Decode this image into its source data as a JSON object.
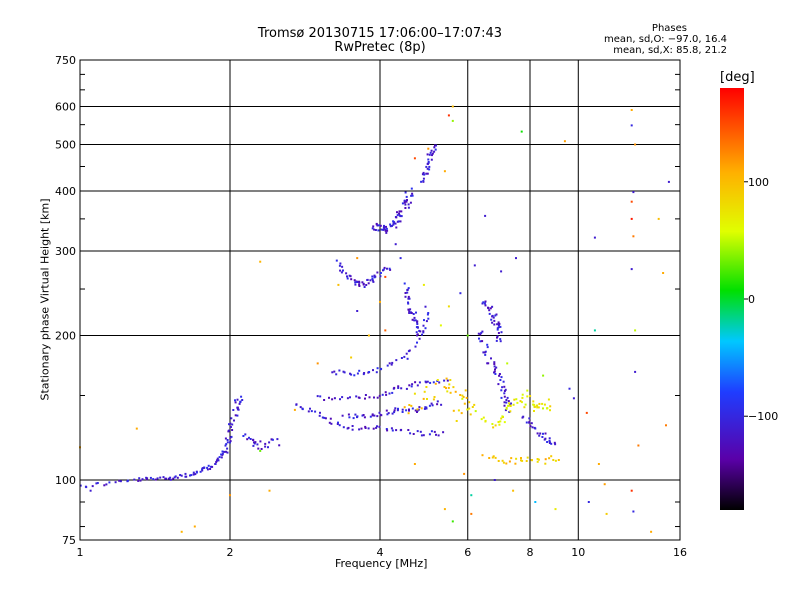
{
  "header": {
    "title_line1": "Tromsø 20130715 17:06:00–17:07:43",
    "title_line2": "RwPretec (8p)",
    "stats_heading": "Phases",
    "stats_o": "mean, sd,O: −97.0, 16.4",
    "stats_x": "mean, sd,X: 85.8, 21.2"
  },
  "colorbar": {
    "label": "[deg]",
    "min": -180,
    "max": 180,
    "ticks": [
      100,
      0,
      -100
    ],
    "tick_labels": [
      "100",
      "0",
      "−100"
    ]
  },
  "chart_data": {
    "type": "scatter",
    "title": "Tromsø 20130715 17:06:00–17:07:43",
    "subtitle": "RwPretec (8p)",
    "xlabel": "Frequency [MHz]",
    "ylabel": "Stationary phase Virtual Height [km]",
    "xscale": "log",
    "yscale": "log",
    "xlim": [
      1,
      16
    ],
    "ylim": [
      75,
      750
    ],
    "xticks": [
      1,
      2,
      4,
      6,
      8,
      10,
      16
    ],
    "xtick_labels": [
      "1",
      "2",
      "4",
      "6",
      "8",
      "10",
      "16"
    ],
    "yticks": [
      75,
      100,
      200,
      300,
      400,
      500,
      600,
      750
    ],
    "ytick_labels": [
      "75",
      "100",
      "200",
      "300",
      "400",
      "500",
      "600",
      "750"
    ],
    "grid": true,
    "color_encoding": "phase (deg)",
    "traces": [
      {
        "phase": -110,
        "n": 24,
        "spread": 0.7,
        "pts": [
          [
            1.0,
            97
          ],
          [
            1.3,
            100
          ],
          [
            1.5,
            101
          ],
          [
            1.7,
            103
          ],
          [
            1.85,
            107
          ],
          [
            1.95,
            115
          ]
        ]
      },
      {
        "phase": -110,
        "n": 12,
        "spread": 1.0,
        "pts": [
          [
            1.95,
            115
          ],
          [
            2.0,
            125
          ],
          [
            2.05,
            140
          ],
          [
            2.1,
            150
          ]
        ]
      },
      {
        "phase": -110,
        "n": 8,
        "spread": 1.5,
        "pts": [
          [
            2.15,
            122
          ],
          [
            2.3,
            118
          ],
          [
            2.5,
            120
          ]
        ]
      },
      {
        "phase": -110,
        "n": 20,
        "spread": 0.8,
        "pts": [
          [
            2.7,
            143
          ],
          [
            3.0,
            138
          ],
          [
            3.3,
            130
          ],
          [
            3.7,
            128
          ],
          [
            4.2,
            128
          ],
          [
            4.8,
            125
          ],
          [
            5.4,
            125
          ]
        ]
      },
      {
        "phase": -110,
        "n": 16,
        "spread": 0.8,
        "pts": [
          [
            3.2,
            168
          ],
          [
            3.6,
            167
          ],
          [
            4.0,
            170
          ],
          [
            4.5,
            180
          ],
          [
            4.9,
            205
          ],
          [
            5.0,
            230
          ]
        ]
      },
      {
        "phase": -110,
        "n": 16,
        "spread": 0.8,
        "pts": [
          [
            3.0,
            148
          ],
          [
            3.5,
            148
          ],
          [
            4.0,
            150
          ],
          [
            4.4,
            155
          ],
          [
            4.9,
            160
          ],
          [
            5.5,
            160
          ]
        ]
      },
      {
        "phase": -110,
        "n": 16,
        "spread": 0.8,
        "pts": [
          [
            3.4,
            136
          ],
          [
            3.9,
            136
          ],
          [
            4.3,
            140
          ],
          [
            4.8,
            140
          ],
          [
            5.3,
            145
          ]
        ]
      },
      {
        "phase": -110,
        "n": 14,
        "spread": 1.0,
        "pts": [
          [
            3.3,
            285
          ],
          [
            3.5,
            260
          ],
          [
            3.7,
            255
          ],
          [
            3.9,
            265
          ],
          [
            4.2,
            280
          ]
        ]
      },
      {
        "phase": -110,
        "n": 18,
        "spread": 1.4,
        "pts": [
          [
            3.9,
            340
          ],
          [
            4.1,
            330
          ],
          [
            4.3,
            345
          ],
          [
            4.5,
            370
          ],
          [
            4.6,
            400
          ]
        ]
      },
      {
        "phase": -110,
        "n": 12,
        "spread": 1.0,
        "pts": [
          [
            4.5,
            255
          ],
          [
            4.6,
            230
          ],
          [
            4.7,
            215
          ],
          [
            4.8,
            200
          ]
        ]
      },
      {
        "phase": -110,
        "n": 10,
        "spread": 1.0,
        "pts": [
          [
            4.9,
            420
          ],
          [
            5.0,
            460
          ],
          [
            5.2,
            500
          ]
        ]
      },
      {
        "phase": -110,
        "n": 14,
        "spread": 1.2,
        "pts": [
          [
            6.3,
            205
          ],
          [
            6.6,
            180
          ],
          [
            6.9,
            165
          ],
          [
            7.1,
            150
          ],
          [
            7.3,
            140
          ]
        ]
      },
      {
        "phase": -110,
        "n": 12,
        "spread": 1.2,
        "pts": [
          [
            6.5,
            235
          ],
          [
            6.8,
            215
          ],
          [
            7.0,
            195
          ]
        ]
      },
      {
        "phase": -110,
        "n": 10,
        "spread": 1.0,
        "pts": [
          [
            7.8,
            135
          ],
          [
            8.2,
            128
          ],
          [
            8.6,
            122
          ],
          [
            9.0,
            118
          ]
        ]
      },
      {
        "phase": 95,
        "n": 12,
        "spread": 1.2,
        "pts": [
          [
            6.5,
            112
          ],
          [
            7.0,
            110
          ],
          [
            7.5,
            109
          ],
          [
            8.0,
            110
          ],
          [
            8.6,
            110
          ],
          [
            9.2,
            112
          ]
        ]
      },
      {
        "phase": 70,
        "n": 22,
        "spread": 2.0,
        "pts": [
          [
            6.0,
            145
          ],
          [
            6.7,
            130
          ],
          [
            7.3,
            140
          ],
          [
            7.8,
            150
          ],
          [
            8.3,
            140
          ],
          [
            8.8,
            145
          ]
        ]
      },
      {
        "phase": 90,
        "n": 12,
        "spread": 2.2,
        "pts": [
          [
            4.5,
            140
          ],
          [
            5.0,
            150
          ],
          [
            5.5,
            160
          ],
          [
            5.9,
            150
          ],
          [
            5.7,
            135
          ]
        ]
      }
    ],
    "scatter_points": [
      {
        "x": 2.0,
        "y": 93,
        "phase": 120
      },
      {
        "x": 2.4,
        "y": 95,
        "phase": 110
      },
      {
        "x": 1.6,
        "y": 78,
        "phase": 105
      },
      {
        "x": 1.7,
        "y": 80,
        "phase": 110
      },
      {
        "x": 2.3,
        "y": 285,
        "phase": 105
      },
      {
        "x": 2.7,
        "y": 140,
        "phase": 110
      },
      {
        "x": 2.3,
        "y": 115,
        "phase": 30
      },
      {
        "x": 3.3,
        "y": 255,
        "phase": 100
      },
      {
        "x": 3.6,
        "y": 290,
        "phase": 120
      },
      {
        "x": 3.0,
        "y": 175,
        "phase": 120
      },
      {
        "x": 3.5,
        "y": 180,
        "phase": 90
      },
      {
        "x": 3.8,
        "y": 200,
        "phase": 100
      },
      {
        "x": 4.1,
        "y": 205,
        "phase": 140
      },
      {
        "x": 4.1,
        "y": 265,
        "phase": 150
      },
      {
        "x": 4.7,
        "y": 468,
        "phase": 150
      },
      {
        "x": 5.0,
        "y": 490,
        "phase": 120
      },
      {
        "x": 5.6,
        "y": 600,
        "phase": 100
      },
      {
        "x": 5.5,
        "y": 575,
        "phase": 160
      },
      {
        "x": 5.6,
        "y": 560,
        "phase": 40
      },
      {
        "x": 5.4,
        "y": 440,
        "phase": 110
      },
      {
        "x": 5.5,
        "y": 230,
        "phase": 80
      },
      {
        "x": 5.3,
        "y": 210,
        "phase": 60
      },
      {
        "x": 4.9,
        "y": 255,
        "phase": 70
      },
      {
        "x": 4.7,
        "y": 108,
        "phase": 110
      },
      {
        "x": 5.4,
        "y": 87,
        "phase": 105
      },
      {
        "x": 5.6,
        "y": 82,
        "phase": 20
      },
      {
        "x": 6.1,
        "y": 85,
        "phase": 130
      },
      {
        "x": 6.1,
        "y": 93,
        "phase": -20
      },
      {
        "x": 5.9,
        "y": 103,
        "phase": 120
      },
      {
        "x": 7.7,
        "y": 532,
        "phase": 10
      },
      {
        "x": 9.4,
        "y": 508,
        "phase": 115
      },
      {
        "x": 8.2,
        "y": 90,
        "phase": -40
      },
      {
        "x": 9.0,
        "y": 87,
        "phase": 70
      },
      {
        "x": 10.4,
        "y": 138,
        "phase": 150
      },
      {
        "x": 10.8,
        "y": 320,
        "phase": -110
      },
      {
        "x": 10.8,
        "y": 205,
        "phase": -20
      },
      {
        "x": 11.0,
        "y": 108,
        "phase": 110
      },
      {
        "x": 11.3,
        "y": 98,
        "phase": 115
      },
      {
        "x": 12.8,
        "y": 590,
        "phase": 110
      },
      {
        "x": 12.8,
        "y": 548,
        "phase": -100
      },
      {
        "x": 13.0,
        "y": 500,
        "phase": 120
      },
      {
        "x": 12.9,
        "y": 398,
        "phase": -110
      },
      {
        "x": 12.8,
        "y": 380,
        "phase": 150
      },
      {
        "x": 12.8,
        "y": 350,
        "phase": 170
      },
      {
        "x": 12.9,
        "y": 322,
        "phase": 130
      },
      {
        "x": 12.8,
        "y": 275,
        "phase": -110
      },
      {
        "x": 13.0,
        "y": 205,
        "phase": 50
      },
      {
        "x": 13.0,
        "y": 168,
        "phase": -110
      },
      {
        "x": 13.2,
        "y": 118,
        "phase": 130
      },
      {
        "x": 12.8,
        "y": 95,
        "phase": 160
      },
      {
        "x": 12.9,
        "y": 86,
        "phase": -100
      },
      {
        "x": 14.5,
        "y": 350,
        "phase": 100
      },
      {
        "x": 14.8,
        "y": 270,
        "phase": 110
      },
      {
        "x": 15.2,
        "y": 418,
        "phase": -110
      },
      {
        "x": 15.0,
        "y": 130,
        "phase": 130
      },
      {
        "x": 14.0,
        "y": 78,
        "phase": 110
      },
      {
        "x": 1.0,
        "y": 117,
        "phase": 110
      },
      {
        "x": 1.3,
        "y": 128,
        "phase": 110
      },
      {
        "x": 1.05,
        "y": 95,
        "phase": -110
      },
      {
        "x": 6.5,
        "y": 355,
        "phase": -110
      },
      {
        "x": 7.0,
        "y": 272,
        "phase": -110
      },
      {
        "x": 7.5,
        "y": 290,
        "phase": -110
      },
      {
        "x": 9.6,
        "y": 155,
        "phase": -100
      },
      {
        "x": 9.8,
        "y": 148,
        "phase": -110
      },
      {
        "x": 11.4,
        "y": 85,
        "phase": 90
      },
      {
        "x": 10.5,
        "y": 90,
        "phase": -100
      },
      {
        "x": 8.5,
        "y": 165,
        "phase": 40
      },
      {
        "x": 7.2,
        "y": 175,
        "phase": 50
      },
      {
        "x": 6.2,
        "y": 280,
        "phase": -110
      },
      {
        "x": 5.8,
        "y": 245,
        "phase": -100
      },
      {
        "x": 6.0,
        "y": 200,
        "phase": 30
      },
      {
        "x": 6.8,
        "y": 100,
        "phase": -110
      },
      {
        "x": 7.4,
        "y": 95,
        "phase": 100
      },
      {
        "x": 4.3,
        "y": 310,
        "phase": -110
      },
      {
        "x": 4.4,
        "y": 290,
        "phase": -100
      },
      {
        "x": 3.6,
        "y": 225,
        "phase": -110
      },
      {
        "x": 4.0,
        "y": 235,
        "phase": 110
      }
    ]
  }
}
